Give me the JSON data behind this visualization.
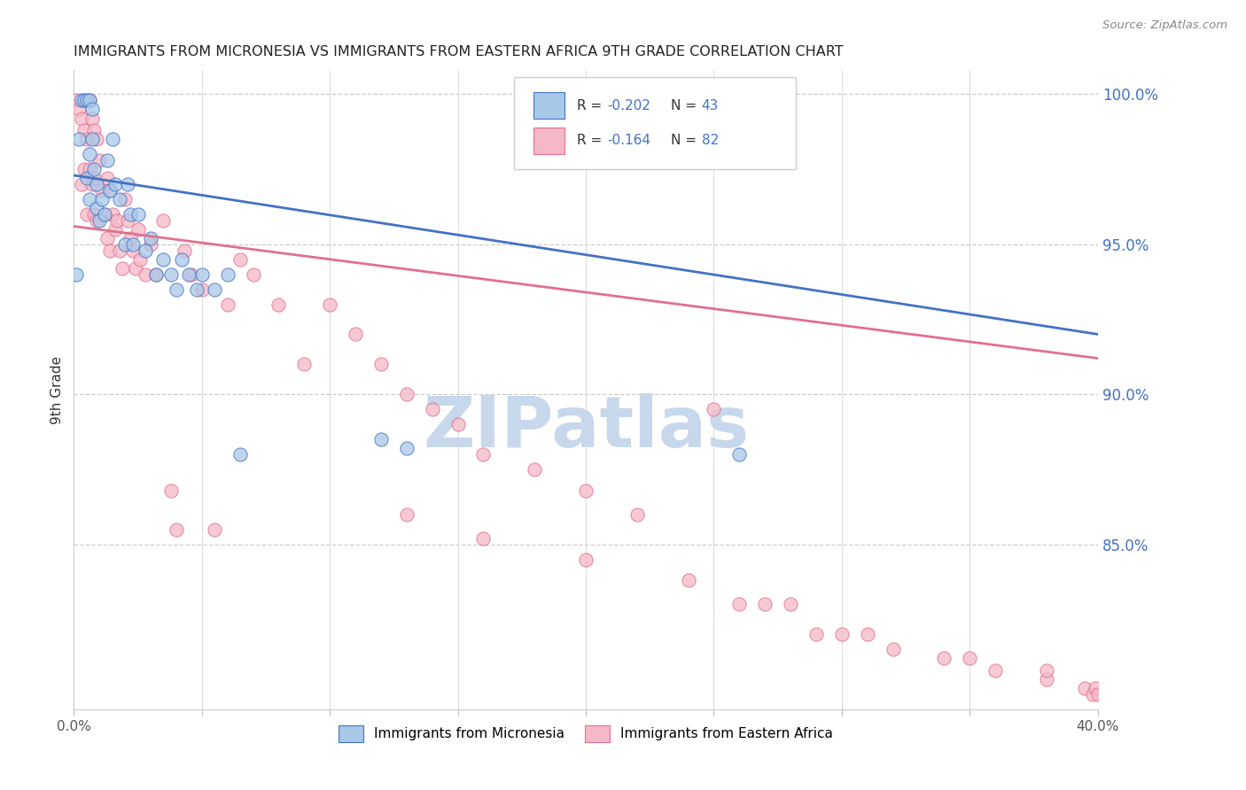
{
  "title": "IMMIGRANTS FROM MICRONESIA VS IMMIGRANTS FROM EASTERN AFRICA 9TH GRADE CORRELATION CHART",
  "source": "Source: ZipAtlas.com",
  "ylabel": "9th Grade",
  "right_ytick_labels": [
    "100.0%",
    "95.0%",
    "90.0%",
    "85.0%"
  ],
  "right_ytick_values": [
    1.0,
    0.95,
    0.9,
    0.85
  ],
  "xlim": [
    0.0,
    0.4
  ],
  "ylim": [
    0.795,
    1.008
  ],
  "legend_r1_black": "R = ",
  "legend_r1_blue": "-0.202",
  "legend_n1_black": "   N = ",
  "legend_n1_blue": "43",
  "legend_r2_black": "R =  ",
  "legend_r2_blue": "-0.164",
  "legend_n2_black": "   N = ",
  "legend_n2_blue": "82",
  "color_micronesia": "#a8c8e8",
  "color_eastern_africa": "#f5b8c8",
  "line_color_micronesia": "#4472c4",
  "line_color_eastern_africa": "#e07090",
  "text_blue": "#4472c4",
  "text_black": "#333333",
  "watermark_text": "ZIPatlas",
  "watermark_color": "#c8d8ec",
  "blue_line_y0": 0.973,
  "blue_line_y1": 0.92,
  "pink_line_y0": 0.956,
  "pink_line_y1": 0.912,
  "mic_x": [
    0.001,
    0.002,
    0.003,
    0.004,
    0.005,
    0.005,
    0.006,
    0.006,
    0.006,
    0.007,
    0.007,
    0.008,
    0.009,
    0.009,
    0.01,
    0.011,
    0.012,
    0.013,
    0.014,
    0.015,
    0.016,
    0.018,
    0.02,
    0.021,
    0.022,
    0.023,
    0.025,
    0.028,
    0.03,
    0.032,
    0.035,
    0.038,
    0.04,
    0.042,
    0.045,
    0.048,
    0.05,
    0.055,
    0.06,
    0.065,
    0.12,
    0.13,
    0.26
  ],
  "mic_y": [
    0.94,
    0.985,
    0.998,
    0.998,
    0.972,
    0.998,
    0.998,
    0.98,
    0.965,
    0.995,
    0.985,
    0.975,
    0.97,
    0.962,
    0.958,
    0.965,
    0.96,
    0.978,
    0.968,
    0.985,
    0.97,
    0.965,
    0.95,
    0.97,
    0.96,
    0.95,
    0.96,
    0.948,
    0.952,
    0.94,
    0.945,
    0.94,
    0.935,
    0.945,
    0.94,
    0.935,
    0.94,
    0.935,
    0.94,
    0.88,
    0.885,
    0.882,
    0.88
  ],
  "ea_x": [
    0.001,
    0.002,
    0.003,
    0.003,
    0.004,
    0.004,
    0.005,
    0.005,
    0.006,
    0.006,
    0.007,
    0.007,
    0.008,
    0.008,
    0.008,
    0.009,
    0.009,
    0.01,
    0.011,
    0.012,
    0.013,
    0.013,
    0.014,
    0.014,
    0.015,
    0.016,
    0.017,
    0.018,
    0.019,
    0.02,
    0.021,
    0.022,
    0.023,
    0.024,
    0.025,
    0.026,
    0.028,
    0.03,
    0.032,
    0.035,
    0.038,
    0.04,
    0.043,
    0.046,
    0.05,
    0.055,
    0.06,
    0.065,
    0.07,
    0.08,
    0.09,
    0.1,
    0.11,
    0.12,
    0.13,
    0.14,
    0.15,
    0.16,
    0.18,
    0.2,
    0.22,
    0.25,
    0.26,
    0.27,
    0.29,
    0.3,
    0.32,
    0.34,
    0.36,
    0.38,
    0.395,
    0.398,
    0.399,
    0.4,
    0.38,
    0.35,
    0.31,
    0.28,
    0.24,
    0.2,
    0.16,
    0.13
  ],
  "ea_y": [
    0.998,
    0.995,
    0.992,
    0.97,
    0.988,
    0.975,
    0.985,
    0.96,
    0.998,
    0.975,
    0.992,
    0.97,
    0.988,
    0.972,
    0.96,
    0.985,
    0.958,
    0.978,
    0.968,
    0.96,
    0.972,
    0.952,
    0.968,
    0.948,
    0.96,
    0.955,
    0.958,
    0.948,
    0.942,
    0.965,
    0.958,
    0.952,
    0.948,
    0.942,
    0.955,
    0.945,
    0.94,
    0.95,
    0.94,
    0.958,
    0.868,
    0.855,
    0.948,
    0.94,
    0.935,
    0.855,
    0.93,
    0.945,
    0.94,
    0.93,
    0.91,
    0.93,
    0.92,
    0.91,
    0.9,
    0.895,
    0.89,
    0.88,
    0.875,
    0.868,
    0.86,
    0.895,
    0.83,
    0.83,
    0.82,
    0.82,
    0.815,
    0.812,
    0.808,
    0.805,
    0.802,
    0.8,
    0.802,
    0.8,
    0.808,
    0.812,
    0.82,
    0.83,
    0.838,
    0.845,
    0.852,
    0.86
  ]
}
